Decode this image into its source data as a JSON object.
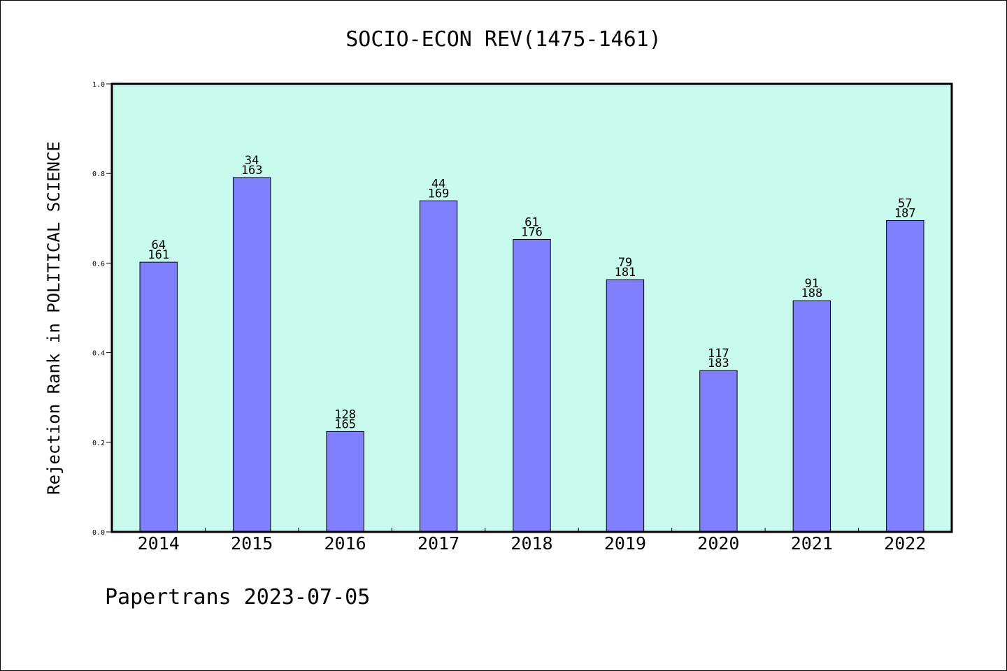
{
  "chart_data": {
    "type": "bar",
    "title": "SOCIO-ECON REV(1475-1461)",
    "xlabel": "",
    "ylabel": "Rejection Rank in POLITICAL SCIENCE",
    "ylim": [
      0,
      1.0
    ],
    "yticks": [
      "0.0",
      "0.2",
      "0.4",
      "0.6",
      "0.8",
      "1.0"
    ],
    "categories": [
      "2014",
      "2015",
      "2016",
      "2017",
      "2018",
      "2019",
      "2020",
      "2021",
      "2022"
    ],
    "values": [
      0.602,
      0.791,
      0.224,
      0.739,
      0.653,
      0.563,
      0.36,
      0.516,
      0.695
    ],
    "label_top": [
      "64",
      "34",
      "128",
      "44",
      "61",
      "79",
      "117",
      "91",
      "57"
    ],
    "label_bottom": [
      "161",
      "163",
      "165",
      "169",
      "176",
      "181",
      "183",
      "188",
      "187"
    ],
    "grid": false,
    "colors": {
      "plot_background": "#c8faee",
      "bar_fill": "#8080ff",
      "bar_stroke": "#000000"
    }
  },
  "footer": "Papertrans 2023-07-05"
}
